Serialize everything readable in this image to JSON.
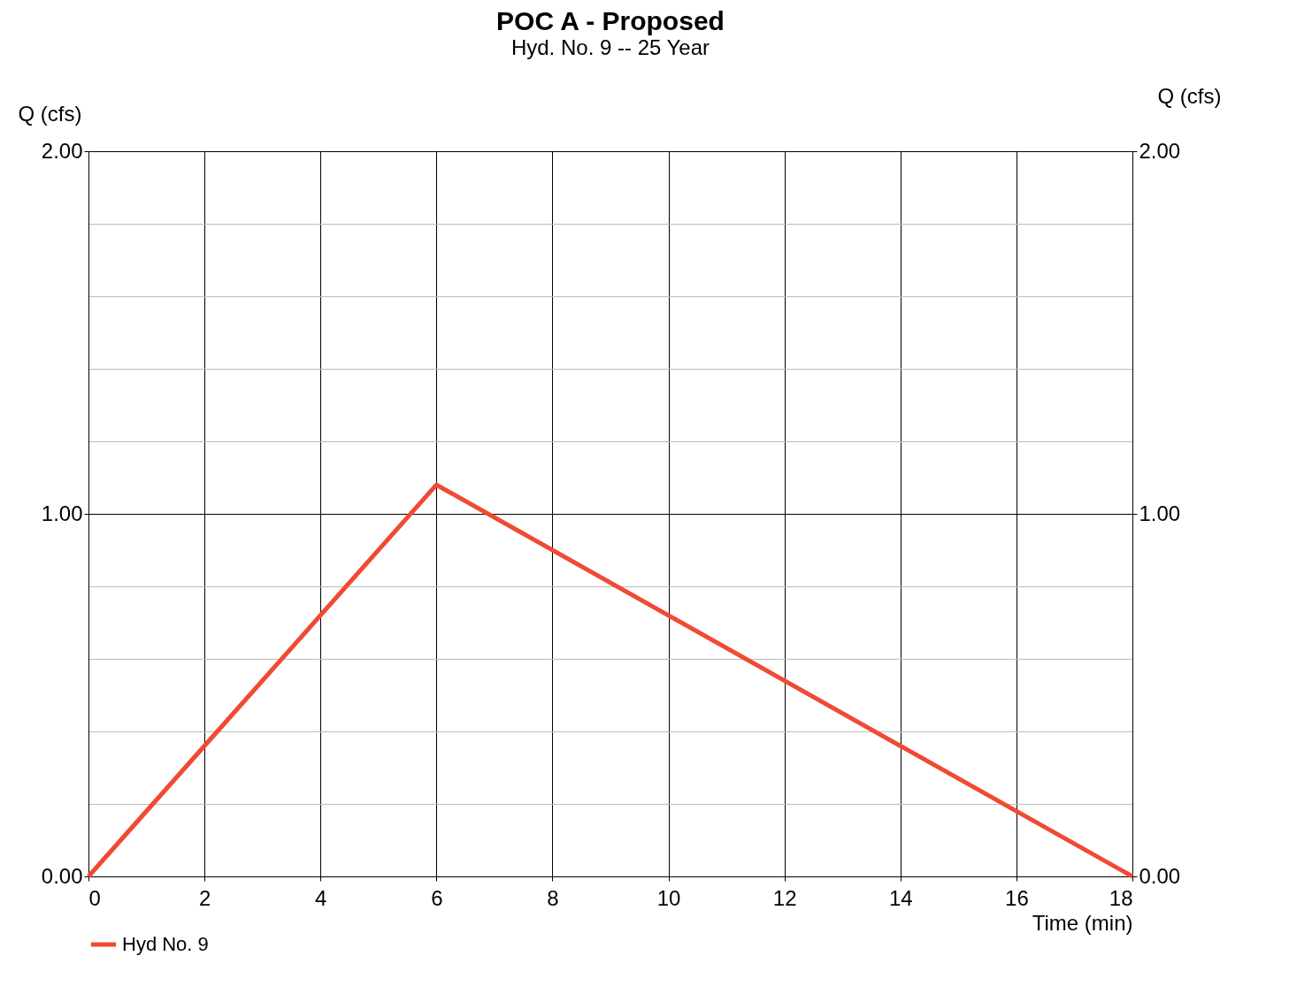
{
  "chart_data": {
    "type": "line",
    "title": "POC A - Proposed",
    "subtitle": "Hyd. No. 9 -- 25 Year",
    "xlabel": "Time (min)",
    "ylabel": "Q (cfs)",
    "y2label": "Q (cfs)",
    "x": [
      0,
      6,
      18
    ],
    "series": [
      {
        "name": "Hyd No. 9",
        "color": "#f04a35",
        "values": [
          0,
          1.08,
          0
        ]
      }
    ],
    "xlim": [
      0,
      18
    ],
    "xticks": [
      0,
      2,
      4,
      6,
      8,
      10,
      12,
      14,
      16,
      18
    ],
    "ylim": [
      0,
      2
    ],
    "yticks": [
      {
        "value": 0,
        "label": "0.00"
      },
      {
        "value": 0.2,
        "label": null
      },
      {
        "value": 0.4,
        "label": null
      },
      {
        "value": 0.6,
        "label": null
      },
      {
        "value": 0.8,
        "label": null
      },
      {
        "value": 1,
        "label": "1.00"
      },
      {
        "value": 1.2,
        "label": null
      },
      {
        "value": 1.4,
        "label": null
      },
      {
        "value": 1.6,
        "label": null
      },
      {
        "value": 1.8,
        "label": null
      },
      {
        "value": 2,
        "label": "2.00"
      }
    ],
    "y2lim": [
      0,
      2
    ],
    "y2ticks": [
      {
        "value": 0,
        "label": "0.00"
      },
      {
        "value": 1,
        "label": "1.00"
      },
      {
        "value": 2,
        "label": "2.00"
      }
    ],
    "grid": true,
    "legend": "bottom left",
    "marker": "none",
    "line_style": "solid"
  }
}
